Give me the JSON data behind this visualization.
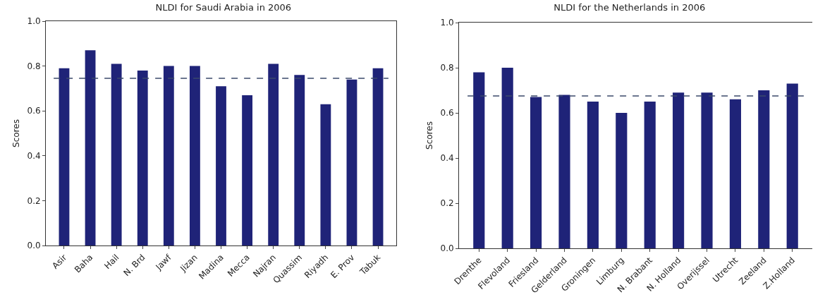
{
  "chart_data": [
    {
      "type": "bar",
      "title": "NLDI for Saudi Arabia in 2006",
      "ylabel": "Scores",
      "categories": [
        "Asir",
        "Baha",
        "Hail",
        "N. Brd",
        "Jawf",
        "Jizan",
        "Madina",
        "Mecca",
        "Najran",
        "Quassim",
        "Riyadh",
        "E. Prov",
        "Tabuk"
      ],
      "values": [
        0.79,
        0.87,
        0.81,
        0.78,
        0.8,
        0.8,
        0.71,
        0.67,
        0.81,
        0.76,
        0.63,
        0.74,
        0.79
      ],
      "color": "#1f2378",
      "ylim": [
        0,
        1
      ],
      "yticks": [
        {
          "value": 0,
          "label": "0.0"
        },
        {
          "value": 0.2,
          "label": "0.2"
        },
        {
          "value": 0.4,
          "label": "0.4"
        },
        {
          "value": 0.6,
          "label": "0.6"
        },
        {
          "value": 0.8,
          "label": "0.8"
        },
        {
          "value": 1,
          "label": "1.0"
        }
      ],
      "ref_lines": [
        {
          "axis": "y",
          "value": 0.745,
          "color": "#3b4a6b",
          "line_style": "dashed"
        }
      ]
    },
    {
      "type": "bar",
      "title": "NLDI for the Netherlands in 2006",
      "ylabel": "Scores",
      "categories": [
        "Drenthe",
        "Flevoland",
        "Friesland",
        "Gelderland",
        "Groningen",
        "Limburg",
        "N. Brabant",
        "N. Holland",
        "Overijssel",
        "Utrecht",
        "Zeeland",
        "Z.Holland"
      ],
      "values": [
        0.78,
        0.8,
        0.67,
        0.68,
        0.65,
        0.6,
        0.65,
        0.69,
        0.69,
        0.66,
        0.7,
        0.73
      ],
      "color": "#1f2378",
      "ylim": [
        0,
        1
      ],
      "yticks": [
        {
          "value": 0,
          "label": "0.0"
        },
        {
          "value": 0.2,
          "label": "0.2"
        },
        {
          "value": 0.4,
          "label": "0.4"
        },
        {
          "value": 0.6,
          "label": "0.6"
        },
        {
          "value": 0.8,
          "label": "0.8"
        },
        {
          "value": 1,
          "label": "1.0"
        }
      ],
      "ref_lines": [
        {
          "axis": "y",
          "value": 0.675,
          "color": "#3b4a6b",
          "line_style": "dashed"
        }
      ]
    }
  ]
}
